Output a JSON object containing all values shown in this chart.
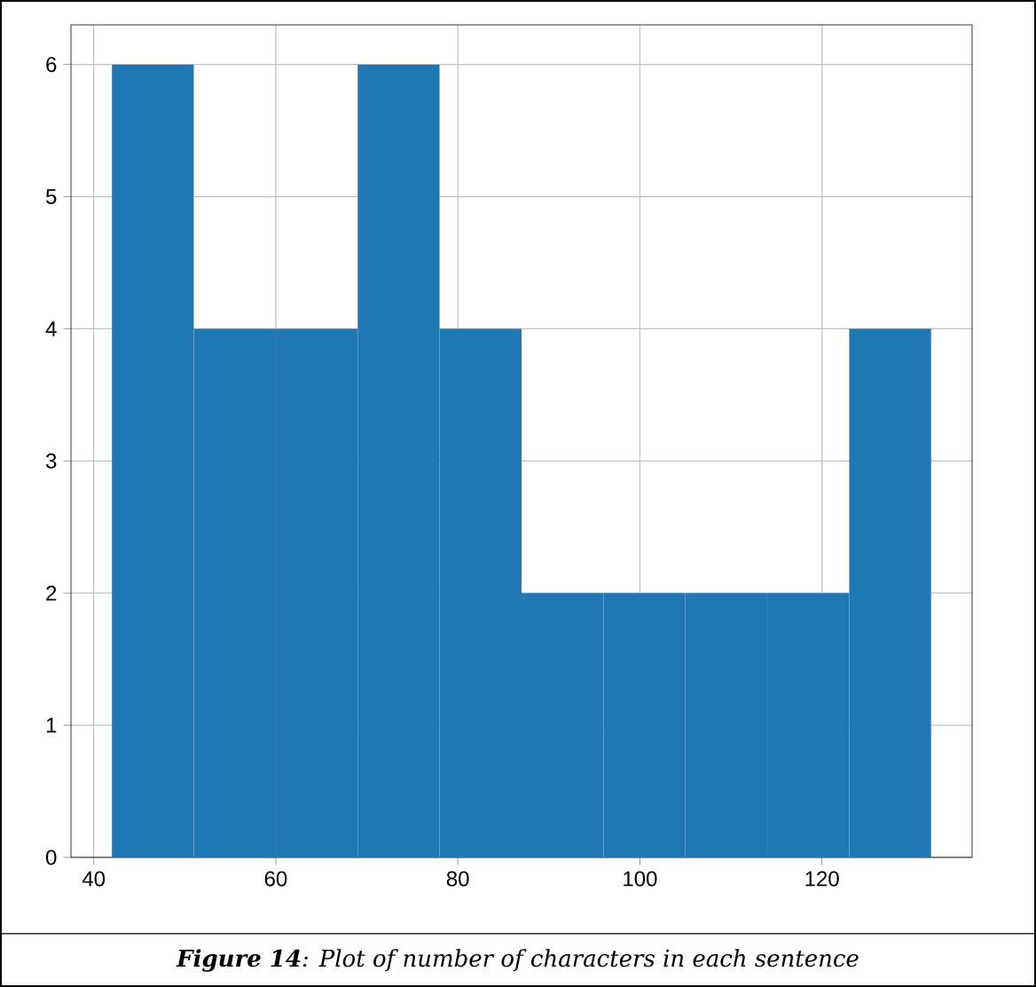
{
  "chart_data": {
    "type": "histogram",
    "bins": [
      42,
      51,
      60,
      69,
      78,
      87,
      96,
      105,
      114,
      123,
      132
    ],
    "values": [
      6,
      4,
      4,
      6,
      4,
      2,
      2,
      2,
      2,
      4
    ],
    "color": "#1f77b4",
    "xlim": [
      37.5,
      136.5
    ],
    "ylim": [
      0,
      6.3
    ],
    "xticks": [
      40,
      60,
      80,
      100,
      120
    ],
    "yticks": [
      0,
      1,
      2,
      3,
      4,
      5,
      6
    ],
    "grid": true,
    "annotations": [
      "**Figure 14**: Plot of number of characters in each sentence"
    ]
  }
}
